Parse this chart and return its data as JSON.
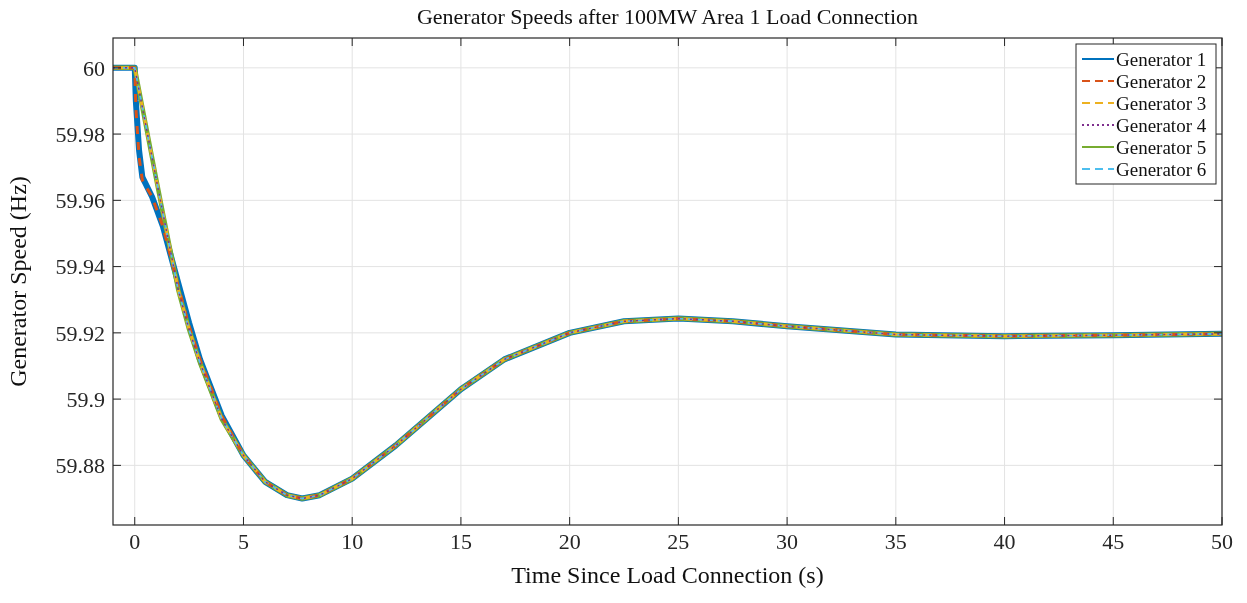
{
  "chart_data": {
    "type": "line",
    "title": "Generator Speeds after 100MW Area 1 Load Connection",
    "xlabel": "Time Since Load Connection (s)",
    "ylabel": "Generator Speed (Hz)",
    "xlim": [
      -1,
      50
    ],
    "xticks": [
      0,
      5,
      10,
      15,
      20,
      25,
      30,
      35,
      40,
      45,
      50
    ],
    "ylim": [
      59.862,
      60.009
    ],
    "yticks": [
      59.88,
      59.9,
      59.92,
      59.94,
      59.96,
      59.98,
      60
    ],
    "grid": true,
    "legend": "top right",
    "marker": "none",
    "series": [
      {
        "name": "Generator 1",
        "color": "#0072bd",
        "line_style": "solid",
        "x": [
          -1,
          0,
          0.05,
          0.2,
          0.35,
          0.8,
          1.3,
          2,
          2.5,
          3,
          4,
          5,
          6,
          7,
          7.7,
          8.5,
          10,
          12,
          15,
          17,
          20,
          22.5,
          25,
          27.5,
          30,
          35,
          40,
          45,
          50
        ],
        "values": [
          60,
          60,
          59.99,
          59.975,
          59.967,
          59.961,
          59.952,
          59.935,
          59.923,
          59.912,
          59.895,
          59.883,
          59.875,
          59.871,
          59.87,
          59.871,
          59.876,
          59.886,
          59.903,
          59.912,
          59.92,
          59.9235,
          59.9243,
          59.9235,
          59.922,
          59.9195,
          59.919,
          59.9193,
          59.9197
        ]
      },
      {
        "name": "Generator 2",
        "color": "#d95319",
        "line_style": "dashed",
        "x": [
          -1,
          0,
          0.05,
          0.2,
          0.35,
          0.8,
          1.3,
          2,
          2.5,
          3,
          4,
          5,
          6,
          7,
          7.7,
          8.5,
          10,
          12,
          15,
          17,
          20,
          22.5,
          25,
          27.5,
          30,
          35,
          40,
          45,
          50
        ],
        "values": [
          60,
          60,
          59.988,
          59.973,
          59.966,
          59.961,
          59.952,
          59.934,
          59.922,
          59.912,
          59.895,
          59.883,
          59.875,
          59.871,
          59.87,
          59.871,
          59.876,
          59.886,
          59.903,
          59.912,
          59.92,
          59.9235,
          59.9243,
          59.9235,
          59.922,
          59.9195,
          59.919,
          59.9193,
          59.9197
        ]
      },
      {
        "name": "Generator 3",
        "color": "#edb120",
        "line_style": "dashed",
        "x": [
          -1,
          0,
          0.5,
          1,
          1.3,
          2,
          2.5,
          3,
          4,
          5,
          6,
          7,
          7.7,
          8.5,
          10,
          12,
          15,
          17,
          20,
          22.5,
          25,
          27.5,
          30,
          35,
          40,
          45,
          50
        ],
        "values": [
          60,
          60,
          59.983,
          59.966,
          59.956,
          59.933,
          59.921,
          59.911,
          59.894,
          59.883,
          59.875,
          59.871,
          59.87,
          59.871,
          59.876,
          59.886,
          59.903,
          59.912,
          59.92,
          59.9235,
          59.9243,
          59.9235,
          59.922,
          59.9195,
          59.919,
          59.9193,
          59.9197
        ]
      },
      {
        "name": "Generator 4",
        "color": "#7e2f8e",
        "line_style": "dotted",
        "x": [
          -1,
          0,
          0.5,
          1,
          1.3,
          2,
          2.5,
          3,
          4,
          5,
          6,
          7,
          7.7,
          8.5,
          10,
          12,
          15,
          17,
          20,
          22.5,
          25,
          27.5,
          30,
          35,
          40,
          45,
          50
        ],
        "values": [
          60,
          60,
          59.983,
          59.966,
          59.956,
          59.933,
          59.921,
          59.911,
          59.894,
          59.883,
          59.875,
          59.871,
          59.87,
          59.871,
          59.876,
          59.886,
          59.903,
          59.912,
          59.92,
          59.9235,
          59.9243,
          59.9235,
          59.922,
          59.9195,
          59.919,
          59.9193,
          59.9197
        ]
      },
      {
        "name": "Generator 5",
        "color": "#77ac30",
        "line_style": "solid",
        "x": [
          -1,
          0,
          0.5,
          1,
          1.3,
          2,
          2.5,
          3,
          4,
          5,
          6,
          7,
          7.7,
          8.5,
          10,
          12,
          15,
          17,
          20,
          22.5,
          25,
          27.5,
          30,
          35,
          40,
          45,
          50
        ],
        "values": [
          60,
          60,
          59.983,
          59.966,
          59.956,
          59.933,
          59.921,
          59.911,
          59.894,
          59.883,
          59.875,
          59.871,
          59.87,
          59.871,
          59.876,
          59.886,
          59.903,
          59.912,
          59.92,
          59.9235,
          59.9243,
          59.9235,
          59.922,
          59.9195,
          59.919,
          59.9193,
          59.9197
        ]
      },
      {
        "name": "Generator 6",
        "color": "#4dbeee",
        "line_style": "dashed",
        "x": [
          -1,
          0,
          0.5,
          1,
          1.3,
          2,
          2.5,
          3,
          4,
          5,
          6,
          7,
          7.7,
          8.5,
          10,
          12,
          15,
          17,
          20,
          22.5,
          25,
          27.5,
          30,
          35,
          40,
          45,
          50
        ],
        "values": [
          60,
          60,
          59.983,
          59.966,
          59.956,
          59.933,
          59.921,
          59.911,
          59.894,
          59.883,
          59.875,
          59.871,
          59.87,
          59.871,
          59.876,
          59.886,
          59.903,
          59.912,
          59.92,
          59.9235,
          59.9243,
          59.9235,
          59.922,
          59.9195,
          59.919,
          59.9193,
          59.9197
        ]
      }
    ]
  }
}
